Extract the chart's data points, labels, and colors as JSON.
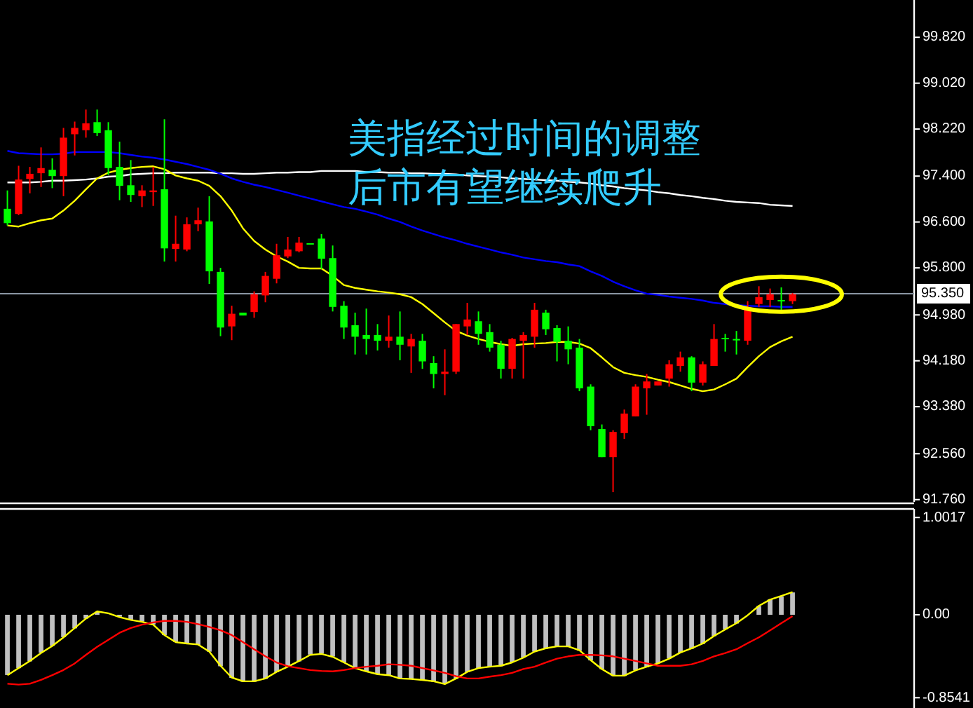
{
  "chart_data": [
    {
      "type": "candlestick",
      "tick_labels": "y",
      "categories": [
        null,
        null,
        null,
        null,
        null,
        null,
        null,
        null,
        null,
        null,
        null,
        null,
        null,
        null,
        null,
        null,
        null,
        null,
        null,
        null,
        null,
        null,
        null,
        null,
        null,
        null,
        null,
        null,
        null,
        null,
        null,
        null,
        null,
        null,
        null,
        null,
        null,
        null,
        null,
        null,
        null,
        null,
        null,
        null,
        null,
        null,
        null,
        null,
        null,
        null,
        null,
        null,
        null,
        null,
        null,
        null,
        null,
        null,
        null,
        null,
        null,
        null,
        null,
        null,
        null,
        null,
        null,
        null,
        null,
        null,
        null
      ],
      "ohlc": [
        [
          96.83,
          97.15,
          96.54,
          96.58
        ],
        [
          96.74,
          97.58,
          96.72,
          97.34
        ],
        [
          97.35,
          97.56,
          97.1,
          97.44
        ],
        [
          97.45,
          97.9,
          97.21,
          97.54
        ],
        [
          97.51,
          97.71,
          97.19,
          97.4
        ],
        [
          97.4,
          98.24,
          97.05,
          98.07
        ],
        [
          98.13,
          98.35,
          97.76,
          98.24
        ],
        [
          98.2,
          98.56,
          98.07,
          98.32
        ],
        [
          98.34,
          98.56,
          98.1,
          98.15
        ],
        [
          98.2,
          98.34,
          97.42,
          97.54
        ],
        [
          97.56,
          98.0,
          96.98,
          97.23
        ],
        [
          97.24,
          97.68,
          96.95,
          97.07
        ],
        [
          97.05,
          97.24,
          96.86,
          97.15
        ],
        [
          97.12,
          97.56,
          96.88,
          97.15
        ],
        [
          97.17,
          98.39,
          95.91,
          96.14
        ],
        [
          96.13,
          96.71,
          95.91,
          96.22
        ],
        [
          96.12,
          96.68,
          96.09,
          96.56
        ],
        [
          96.56,
          96.85,
          96.44,
          96.63
        ],
        [
          96.61,
          97.05,
          95.52,
          95.74
        ],
        [
          95.73,
          95.8,
          94.61,
          94.76
        ],
        [
          94.78,
          95.14,
          94.54,
          95.0
        ],
        [
          95.02,
          95.02,
          94.97,
          94.97
        ],
        [
          95.03,
          95.39,
          94.93,
          95.34
        ],
        [
          95.32,
          95.73,
          95.2,
          95.66
        ],
        [
          95.61,
          96.22,
          95.53,
          96.02
        ],
        [
          96.0,
          96.34,
          95.97,
          96.12
        ],
        [
          96.09,
          96.34,
          96.07,
          96.24
        ],
        [
          96.23,
          96.23,
          96.22,
          96.22
        ],
        [
          96.31,
          96.39,
          95.78,
          95.96
        ],
        [
          95.97,
          96.19,
          95.04,
          95.12
        ],
        [
          95.14,
          95.22,
          94.56,
          94.76
        ],
        [
          94.8,
          95.02,
          94.29,
          94.6
        ],
        [
          94.63,
          95.09,
          94.29,
          94.56
        ],
        [
          94.63,
          94.82,
          94.36,
          94.53
        ],
        [
          94.53,
          94.97,
          94.41,
          94.6
        ],
        [
          94.6,
          95.04,
          94.19,
          94.46
        ],
        [
          94.43,
          94.65,
          93.97,
          94.56
        ],
        [
          94.53,
          94.65,
          94.04,
          94.17
        ],
        [
          94.14,
          94.26,
          93.7,
          93.95
        ],
        [
          93.95,
          94.38,
          93.58,
          93.99
        ],
        [
          93.99,
          94.82,
          93.95,
          94.82
        ],
        [
          94.78,
          95.19,
          94.63,
          94.9
        ],
        [
          94.87,
          95.04,
          94.46,
          94.65
        ],
        [
          94.68,
          94.82,
          94.34,
          94.41
        ],
        [
          94.46,
          94.53,
          93.87,
          94.04
        ],
        [
          94.04,
          94.58,
          93.87,
          94.56
        ],
        [
          94.53,
          94.68,
          93.87,
          94.63
        ],
        [
          94.6,
          95.19,
          94.41,
          95.07
        ],
        [
          95.02,
          95.07,
          94.63,
          94.73
        ],
        [
          94.75,
          94.8,
          94.17,
          94.51
        ],
        [
          94.53,
          94.78,
          94.12,
          94.38
        ],
        [
          94.41,
          94.56,
          93.65,
          93.7
        ],
        [
          93.73,
          93.77,
          92.97,
          93.04
        ],
        [
          92.99,
          93.07,
          92.5,
          92.5
        ],
        [
          92.5,
          92.97,
          91.89,
          92.94
        ],
        [
          92.92,
          93.33,
          92.82,
          93.26
        ],
        [
          93.21,
          93.77,
          93.21,
          93.73
        ],
        [
          93.7,
          93.95,
          93.24,
          93.82
        ],
        [
          93.75,
          93.82,
          93.75,
          93.82
        ],
        [
          93.87,
          94.19,
          93.73,
          94.12
        ],
        [
          94.09,
          94.34,
          93.99,
          94.24
        ],
        [
          94.24,
          94.26,
          93.65,
          93.8
        ],
        [
          93.8,
          94.17,
          93.75,
          94.12
        ],
        [
          94.09,
          94.82,
          94.09,
          94.56
        ],
        [
          94.58,
          94.65,
          94.34,
          94.57
        ],
        [
          94.56,
          94.7,
          94.29,
          94.55
        ],
        [
          94.53,
          95.22,
          94.46,
          95.12
        ],
        [
          95.17,
          95.48,
          95.12,
          95.29
        ],
        [
          95.24,
          95.44,
          95.12,
          95.34
        ],
        [
          95.24,
          95.46,
          95.04,
          95.23
        ],
        [
          95.22,
          95.36,
          95.17,
          95.34
        ]
      ],
      "series": [
        {
          "type": "line",
          "color": "#ffffff",
          "values": [
            97.29,
            97.29,
            97.29,
            97.3,
            97.32,
            97.32,
            97.33,
            97.34,
            97.36,
            97.39,
            97.4,
            97.43,
            97.44,
            97.45,
            97.45,
            97.46,
            97.46,
            97.46,
            97.46,
            97.45,
            97.45,
            97.44,
            97.44,
            97.45,
            97.46,
            97.46,
            97.47,
            97.47,
            97.49,
            97.49,
            97.49,
            97.49,
            97.47,
            97.47,
            97.46,
            97.46,
            97.45,
            97.45,
            97.44,
            97.44,
            97.43,
            97.41,
            97.4,
            97.39,
            97.38,
            97.36,
            97.35,
            97.34,
            97.33,
            97.32,
            97.3,
            97.29,
            97.27,
            97.24,
            97.22,
            97.19,
            97.17,
            97.15,
            97.12,
            97.1,
            97.07,
            97.05,
            97.02,
            97.0,
            96.97,
            96.95,
            96.94,
            96.93,
            96.9,
            96.89,
            96.88
          ]
        },
        {
          "type": "line",
          "color": "#0000ff",
          "values": [
            97.84,
            97.8,
            97.79,
            97.78,
            97.78,
            97.79,
            97.82,
            97.82,
            97.82,
            97.82,
            97.8,
            97.77,
            97.74,
            97.72,
            97.69,
            97.65,
            97.61,
            97.56,
            97.51,
            97.44,
            97.36,
            97.3,
            97.25,
            97.21,
            97.16,
            97.11,
            97.06,
            97.01,
            96.96,
            96.91,
            96.86,
            96.83,
            96.78,
            96.73,
            96.66,
            96.6,
            96.52,
            96.45,
            96.39,
            96.33,
            96.28,
            96.22,
            96.17,
            96.12,
            96.07,
            96.03,
            95.98,
            95.95,
            95.92,
            95.9,
            95.86,
            95.83,
            95.74,
            95.66,
            95.56,
            95.48,
            95.41,
            95.35,
            95.33,
            95.3,
            95.28,
            95.26,
            95.23,
            95.19,
            95.17,
            95.15,
            95.14,
            95.13,
            95.13,
            95.12,
            95.12
          ]
        },
        {
          "type": "line",
          "color": "#ffff00",
          "values": [
            96.54,
            96.52,
            96.58,
            96.63,
            96.66,
            96.8,
            96.97,
            97.17,
            97.36,
            97.46,
            97.51,
            97.54,
            97.56,
            97.57,
            97.52,
            97.41,
            97.36,
            97.32,
            97.23,
            97.05,
            96.8,
            96.49,
            96.27,
            96.12,
            96.0,
            95.91,
            95.8,
            95.79,
            95.79,
            95.66,
            95.5,
            95.45,
            95.42,
            95.39,
            95.37,
            95.34,
            95.29,
            95.17,
            95.01,
            94.85,
            94.7,
            94.62,
            94.56,
            94.51,
            94.47,
            94.44,
            94.47,
            94.48,
            94.49,
            94.51,
            94.51,
            94.48,
            94.4,
            94.24,
            94.07,
            93.97,
            93.93,
            93.9,
            93.85,
            93.81,
            93.75,
            93.69,
            93.65,
            93.68,
            93.77,
            93.87,
            94.07,
            94.26,
            94.42,
            94.52,
            94.6
          ]
        }
      ],
      "ylim": [
        91.72,
        100.47
      ],
      "yticks": [
        {
          "value": 99.82,
          "label": "99.820"
        },
        {
          "value": 99.02,
          "label": "99.020"
        },
        {
          "value": 98.22,
          "label": "98.220"
        },
        {
          "value": 97.4,
          "label": "97.400"
        },
        {
          "value": 96.6,
          "label": "96.600"
        },
        {
          "value": 95.8,
          "label": "95.800"
        },
        {
          "value": 94.98,
          "label": "94.980"
        },
        {
          "value": 94.18,
          "label": "94.180"
        },
        {
          "value": 93.38,
          "label": "93.380"
        },
        {
          "value": 92.56,
          "label": "92.560"
        },
        {
          "value": 91.76,
          "label": "91.760"
        }
      ],
      "ref_lines": [
        {
          "axis": "y",
          "value": 95.35,
          "label": "95.350",
          "color": "#8a96a3"
        }
      ],
      "annotations": [
        "美指经过时间的调整",
        "后市有望继续爬升"
      ]
    },
    {
      "type": "bar",
      "tick_labels": "y",
      "categories": [
        null,
        null,
        null,
        null,
        null,
        null,
        null,
        null,
        null,
        null,
        null,
        null,
        null,
        null,
        null,
        null,
        null,
        null,
        null,
        null,
        null,
        null,
        null,
        null,
        null,
        null,
        null,
        null,
        null,
        null,
        null,
        null,
        null,
        null,
        null,
        null,
        null,
        null,
        null,
        null,
        null,
        null,
        null,
        null,
        null,
        null,
        null,
        null,
        null,
        null,
        null,
        null,
        null,
        null,
        null,
        null,
        null,
        null,
        null,
        null,
        null,
        null,
        null,
        null,
        null,
        null,
        null,
        null,
        null,
        null,
        null
      ],
      "series": [
        {
          "type": "bar",
          "color": "#c0c0c0",
          "values": [
            -0.62,
            -0.55,
            -0.48,
            -0.39,
            -0.32,
            -0.23,
            -0.14,
            -0.04,
            0.03,
            null,
            -0.02,
            -0.05,
            -0.07,
            -0.1,
            -0.21,
            -0.28,
            -0.3,
            -0.31,
            -0.38,
            -0.53,
            -0.65,
            -0.69,
            -0.69,
            -0.66,
            -0.59,
            -0.54,
            -0.48,
            -0.41,
            -0.4,
            -0.43,
            -0.49,
            -0.55,
            -0.58,
            -0.61,
            -0.62,
            -0.66,
            -0.66,
            -0.67,
            -0.69,
            -0.71,
            -0.66,
            -0.59,
            -0.55,
            -0.54,
            -0.53,
            -0.49,
            -0.44,
            -0.38,
            -0.35,
            -0.33,
            -0.33,
            -0.37,
            -0.47,
            -0.56,
            -0.63,
            -0.63,
            -0.57,
            -0.54,
            -0.5,
            -0.45,
            -0.39,
            -0.35,
            -0.3,
            -0.22,
            -0.15,
            -0.09,
            null,
            0.09,
            0.16,
            0.19,
            0.23
          ]
        },
        {
          "type": "line",
          "color": "#ffff00",
          "values": [
            -0.622,
            -0.549,
            -0.476,
            -0.394,
            -0.321,
            -0.233,
            -0.136,
            -0.039,
            0.034,
            0.015,
            -0.024,
            -0.053,
            -0.073,
            -0.102,
            -0.209,
            -0.282,
            -0.296,
            -0.306,
            -0.379,
            -0.525,
            -0.646,
            -0.685,
            -0.685,
            -0.656,
            -0.588,
            -0.535,
            -0.476,
            -0.413,
            -0.403,
            -0.433,
            -0.491,
            -0.549,
            -0.583,
            -0.612,
            -0.622,
            -0.656,
            -0.661,
            -0.671,
            -0.685,
            -0.714,
            -0.656,
            -0.588,
            -0.549,
            -0.535,
            -0.525,
            -0.491,
            -0.442,
            -0.379,
            -0.345,
            -0.326,
            -0.326,
            -0.365,
            -0.467,
            -0.559,
            -0.627,
            -0.627,
            -0.573,
            -0.535,
            -0.501,
            -0.452,
            -0.389,
            -0.345,
            -0.296,
            -0.219,
            -0.151,
            -0.087,
            -0.005,
            0.092,
            0.156,
            0.194,
            0.233
          ]
        },
        {
          "type": "line",
          "color": "#ff0000",
          "values": [
            -0.71,
            -0.719,
            -0.71,
            -0.671,
            -0.622,
            -0.569,
            -0.501,
            -0.413,
            -0.33,
            -0.258,
            -0.185,
            -0.136,
            -0.102,
            -0.078,
            -0.063,
            -0.063,
            -0.073,
            -0.097,
            -0.126,
            -0.16,
            -0.209,
            -0.282,
            -0.355,
            -0.428,
            -0.491,
            -0.53,
            -0.549,
            -0.569,
            -0.578,
            -0.583,
            -0.569,
            -0.549,
            -0.535,
            -0.525,
            -0.51,
            -0.515,
            -0.525,
            -0.549,
            -0.573,
            -0.598,
            -0.632,
            -0.656,
            -0.656,
            -0.637,
            -0.622,
            -0.598,
            -0.559,
            -0.535,
            -0.491,
            -0.452,
            -0.428,
            -0.413,
            -0.413,
            -0.418,
            -0.428,
            -0.452,
            -0.476,
            -0.501,
            -0.525,
            -0.525,
            -0.525,
            -0.51,
            -0.476,
            -0.428,
            -0.394,
            -0.355,
            -0.292,
            -0.233,
            -0.16,
            -0.087,
            -0.015
          ]
        }
      ],
      "ylim": [
        -0.96,
        1.09
      ],
      "yticks": [
        1.0017,
        {
          "value": 0,
          "label": "0.00"
        },
        -0.8541
      ]
    }
  ]
}
